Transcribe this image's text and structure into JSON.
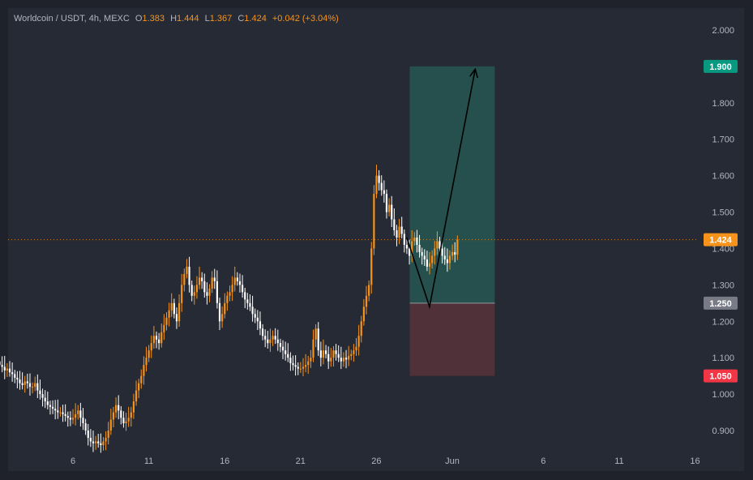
{
  "legend": {
    "symbol": "Worldcoin / USDT, 4h, MEXC",
    "open_label": "O",
    "open": "1.383",
    "high_label": "H",
    "high": "1.444",
    "low_label": "L",
    "low": "1.367",
    "close_label": "C",
    "close": "1.424",
    "change": "+0.042 (+3.04%)"
  },
  "colors": {
    "background": "#262a35",
    "up_candle": "#f7931a",
    "down_candle": "#ffffff",
    "target_zone": "#26504d",
    "stop_zone": "#503039",
    "target_badge": "#089981",
    "price_badge": "#f7931a",
    "entry_badge": "#787b86",
    "stop_badge": "#f23645",
    "axis_text": "#b2b5be"
  },
  "chart_data": {
    "type": "candlestick",
    "symbol": "Worldcoin / USDT",
    "interval": "4h",
    "exchange": "MEXC",
    "ylim": [
      0.82,
      2.02
    ],
    "y_ticks": [
      "2.000",
      "1.800",
      "1.700",
      "1.600",
      "1.500",
      "1.400",
      "1.300",
      "1.200",
      "1.100",
      "1.000",
      "0.900"
    ],
    "x_ticks": [
      "6",
      "11",
      "16",
      "21",
      "26",
      "Jun",
      "6",
      "11",
      "16"
    ],
    "candle_interval_days": 0.1667,
    "x_start_day": 1.0,
    "x_range_days": [
      1.0,
      48.0
    ],
    "x_tick_days": [
      6,
      11,
      16,
      21,
      26,
      31,
      37,
      42,
      47
    ],
    "closes": [
      1.09,
      1.08,
      1.075,
      1.065,
      1.07,
      1.06,
      1.055,
      1.045,
      1.04,
      1.03,
      1.025,
      1.035,
      1.03,
      1.02,
      1.02,
      1.03,
      1.01,
      1.0,
      0.99,
      0.98,
      0.97,
      0.965,
      0.96,
      0.955,
      0.95,
      0.95,
      0.945,
      0.94,
      0.935,
      0.93,
      0.935,
      0.945,
      0.955,
      0.935,
      0.92,
      0.9,
      0.88,
      0.87,
      0.865,
      0.87,
      0.865,
      0.86,
      0.87,
      0.88,
      0.9,
      0.93,
      0.95,
      0.97,
      0.955,
      0.935,
      0.92,
      0.925,
      0.935,
      0.95,
      0.98,
      1.01,
      1.03,
      1.05,
      1.08,
      1.1,
      1.12,
      1.14,
      1.16,
      1.15,
      1.14,
      1.17,
      1.19,
      1.21,
      1.23,
      1.25,
      1.22,
      1.2,
      1.25,
      1.3,
      1.33,
      1.35,
      1.3,
      1.27,
      1.28,
      1.3,
      1.32,
      1.31,
      1.28,
      1.27,
      1.29,
      1.32,
      1.31,
      1.25,
      1.2,
      1.22,
      1.25,
      1.27,
      1.28,
      1.3,
      1.32,
      1.31,
      1.3,
      1.28,
      1.26,
      1.25,
      1.24,
      1.22,
      1.21,
      1.2,
      1.18,
      1.16,
      1.15,
      1.14,
      1.15,
      1.16,
      1.15,
      1.14,
      1.13,
      1.12,
      1.11,
      1.1,
      1.085,
      1.08,
      1.075,
      1.07,
      1.07,
      1.075,
      1.08,
      1.09,
      1.1,
      1.15,
      1.18,
      1.12,
      1.1,
      1.12,
      1.11,
      1.09,
      1.1,
      1.12,
      1.11,
      1.1,
      1.09,
      1.1,
      1.095,
      1.105,
      1.11,
      1.12,
      1.13,
      1.16,
      1.2,
      1.24,
      1.27,
      1.3,
      1.4,
      1.55,
      1.6,
      1.58,
      1.56,
      1.55,
      1.5,
      1.52,
      1.48,
      1.45,
      1.43,
      1.46,
      1.44,
      1.41,
      1.4,
      1.38,
      1.42,
      1.43,
      1.41,
      1.39,
      1.38,
      1.37,
      1.35,
      1.36,
      1.38,
      1.4,
      1.42,
      1.4,
      1.38,
      1.37,
      1.36,
      1.38,
      1.39,
      1.383,
      1.424
    ],
    "position": {
      "type": "long",
      "target": 1.9,
      "entry": 1.25,
      "stop": 1.05,
      "start_day": 28.2,
      "end_day": 33.8,
      "current_price": 1.424
    },
    "projection_path": [
      {
        "day": 28.0,
        "price": 1.43
      },
      {
        "day": 29.5,
        "price": 1.24
      },
      {
        "day": 32.5,
        "price": 1.89
      }
    ],
    "badges": {
      "target": "1.900",
      "price": "1.424",
      "entry": "1.250",
      "stop": "1.050"
    }
  }
}
